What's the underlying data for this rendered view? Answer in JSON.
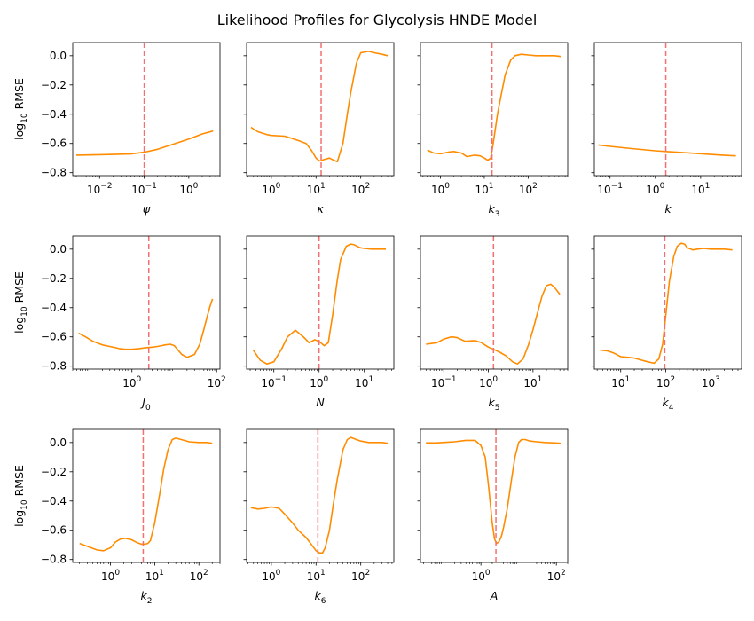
{
  "figure": {
    "title": "Likelihood Profiles for Glycolysis HNDE Model"
  },
  "chart_data": [
    {
      "type": "line",
      "xlabel": "ψ",
      "xsub": "",
      "ylabel": "log10 RMSE",
      "xscale": "log",
      "xlim": [
        0.0025,
        5.0
      ],
      "ylim": [
        -0.82,
        0.09
      ],
      "xticks": [
        0.01,
        0.1,
        1
      ],
      "xtick_labels": [
        "10−2",
        "10−1",
        "100"
      ],
      "yticks": [
        0.0,
        -0.2,
        -0.4,
        -0.6,
        -0.8
      ],
      "ytick_labels": [
        "0.0",
        "−0.2",
        "−0.4",
        "−0.6",
        "−0.8"
      ],
      "reference_x": 0.1,
      "series": [
        {
          "x": [
            0.003,
            0.01,
            0.05,
            0.1,
            0.2,
            0.5,
            1.0,
            2.0,
            3.5
          ],
          "y": [
            -0.68,
            -0.677,
            -0.672,
            -0.66,
            -0.64,
            -0.6,
            -0.57,
            -0.535,
            -0.515
          ]
        }
      ]
    },
    {
      "type": "line",
      "xlabel": "κ",
      "xsub": "",
      "ylabel": "",
      "xscale": "log",
      "xlim": [
        0.28,
        550
      ],
      "ylim": [
        -0.82,
        0.09
      ],
      "xticks": [
        1,
        10,
        100
      ],
      "xtick_labels": [
        "100",
        "101",
        "102"
      ],
      "yticks": [
        0.0,
        -0.2,
        -0.4,
        -0.6,
        -0.8
      ],
      "ytick_labels": [],
      "reference_x": 13,
      "series": [
        {
          "x": [
            0.35,
            0.5,
            0.8,
            1.0,
            2.0,
            4.0,
            6.0,
            8.0,
            10.0,
            12.0,
            15.0,
            20.0,
            25.0,
            30.0,
            40.0,
            50.0,
            60.0,
            80.0,
            100.0,
            150.0,
            200.0,
            300.0,
            400.0
          ],
          "y": [
            -0.49,
            -0.52,
            -0.54,
            -0.545,
            -0.55,
            -0.58,
            -0.6,
            -0.65,
            -0.7,
            -0.72,
            -0.71,
            -0.7,
            -0.715,
            -0.725,
            -0.6,
            -0.4,
            -0.25,
            -0.05,
            0.02,
            0.03,
            0.02,
            0.01,
            0.0
          ]
        }
      ]
    },
    {
      "type": "line",
      "xlabel": "k",
      "xsub": "3",
      "ylabel": "",
      "xscale": "log",
      "xlim": [
        0.35,
        800
      ],
      "ylim": [
        -0.82,
        0.09
      ],
      "xticks": [
        1,
        10,
        100
      ],
      "xtick_labels": [
        "100",
        "101",
        "102"
      ],
      "yticks": [
        0.0,
        -0.2,
        -0.4,
        -0.6,
        -0.8
      ],
      "ytick_labels": [],
      "reference_x": 15,
      "series": [
        {
          "x": [
            0.5,
            0.7,
            1.0,
            1.5,
            2.0,
            3.0,
            4.0,
            6.0,
            8.0,
            10.0,
            12.0,
            14.0,
            16.0,
            20.0,
            25.0,
            30.0,
            40.0,
            50.0,
            70.0,
            100.0,
            150.0,
            200.0,
            300.0,
            400.0,
            550.0
          ],
          "y": [
            -0.645,
            -0.665,
            -0.67,
            -0.66,
            -0.655,
            -0.665,
            -0.69,
            -0.68,
            -0.685,
            -0.7,
            -0.715,
            -0.7,
            -0.6,
            -0.4,
            -0.25,
            -0.13,
            -0.03,
            0.0,
            0.01,
            0.005,
            0.0,
            0.0,
            0.0,
            0.0,
            -0.005
          ]
        }
      ]
    },
    {
      "type": "line",
      "xlabel": "k",
      "xsub": "",
      "ylabel": "",
      "xscale": "log",
      "xlim": [
        0.045,
        80
      ],
      "ylim": [
        -0.82,
        0.09
      ],
      "xticks": [
        0.1,
        1,
        10
      ],
      "xtick_labels": [
        "10−1",
        "100",
        "101"
      ],
      "yticks": [
        0.0,
        -0.2,
        -0.4,
        -0.6,
        -0.8
      ],
      "ytick_labels": [],
      "reference_x": 1.7,
      "series": [
        {
          "x": [
            0.055,
            0.1,
            0.3,
            1.0,
            1.7,
            3.0,
            10.0,
            30.0,
            60.0
          ],
          "y": [
            -0.61,
            -0.62,
            -0.635,
            -0.65,
            -0.655,
            -0.66,
            -0.67,
            -0.68,
            -0.685
          ]
        }
      ]
    },
    {
      "type": "line",
      "xlabel": "J",
      "xsub": "0",
      "ylabel": "log10 RMSE",
      "xscale": "log",
      "xlim": [
        0.04,
        120
      ],
      "ylim": [
        -0.82,
        0.09
      ],
      "xticks": [
        1,
        100
      ],
      "xtick_labels": [
        "100",
        "102"
      ],
      "yticks": [
        0.0,
        -0.2,
        -0.4,
        -0.6,
        -0.8
      ],
      "ytick_labels": [
        "0.0",
        "−0.2",
        "−0.4",
        "−0.6",
        "−0.8"
      ],
      "reference_x": 2.5,
      "series": [
        {
          "x": [
            0.055,
            0.08,
            0.12,
            0.2,
            0.3,
            0.5,
            0.7,
            1.0,
            1.5,
            2.0,
            3.0,
            4.0,
            5.0,
            6.0,
            8.0,
            10.0,
            15.0,
            20.0,
            30.0,
            40.0,
            50.0,
            60.0,
            70.0,
            80.0
          ],
          "y": [
            -0.575,
            -0.6,
            -0.63,
            -0.655,
            -0.665,
            -0.68,
            -0.685,
            -0.685,
            -0.68,
            -0.675,
            -0.67,
            -0.665,
            -0.66,
            -0.655,
            -0.65,
            -0.66,
            -0.72,
            -0.74,
            -0.72,
            -0.65,
            -0.55,
            -0.46,
            -0.39,
            -0.34
          ]
        }
      ]
    },
    {
      "type": "line",
      "xlabel": "N",
      "xsub": "",
      "ylabel": "",
      "xscale": "log",
      "xlim": [
        0.025,
        45
      ],
      "ylim": [
        -0.82,
        0.09
      ],
      "xticks": [
        0.1,
        1,
        10
      ],
      "xtick_labels": [
        "10−1",
        "100",
        "101"
      ],
      "yticks": [
        0.0,
        -0.2,
        -0.4,
        -0.6,
        -0.8
      ],
      "ytick_labels": [],
      "reference_x": 1.0,
      "series": [
        {
          "x": [
            0.035,
            0.05,
            0.07,
            0.1,
            0.15,
            0.2,
            0.3,
            0.45,
            0.6,
            0.8,
            1.0,
            1.3,
            1.6,
            2.0,
            2.5,
            3.0,
            4.0,
            5.0,
            6.0,
            8.0,
            10.0,
            15.0,
            20.0,
            30.0
          ],
          "y": [
            -0.69,
            -0.76,
            -0.785,
            -0.77,
            -0.68,
            -0.6,
            -0.555,
            -0.6,
            -0.64,
            -0.62,
            -0.63,
            -0.66,
            -0.64,
            -0.45,
            -0.22,
            -0.07,
            0.02,
            0.035,
            0.03,
            0.01,
            0.005,
            0.0,
            0.0,
            0.0
          ]
        }
      ]
    },
    {
      "type": "line",
      "xlabel": "k",
      "xsub": "5",
      "ylabel": "",
      "xscale": "log",
      "xlim": [
        0.03,
        60
      ],
      "ylim": [
        -0.82,
        0.09
      ],
      "xticks": [
        0.1,
        1,
        10
      ],
      "xtick_labels": [
        "10−1",
        "100",
        "101"
      ],
      "yticks": [
        0.0,
        -0.2,
        -0.4,
        -0.6,
        -0.8
      ],
      "ytick_labels": [],
      "reference_x": 1.3,
      "series": [
        {
          "x": [
            0.04,
            0.07,
            0.1,
            0.15,
            0.2,
            0.3,
            0.5,
            0.7,
            1.0,
            1.3,
            1.8,
            2.5,
            3.5,
            4.5,
            6.0,
            8.0,
            10.0,
            13.0,
            16.0,
            20.0,
            25.0,
            30.0,
            40.0
          ],
          "y": [
            -0.65,
            -0.64,
            -0.615,
            -0.6,
            -0.605,
            -0.63,
            -0.625,
            -0.64,
            -0.67,
            -0.685,
            -0.705,
            -0.73,
            -0.77,
            -0.785,
            -0.75,
            -0.65,
            -0.55,
            -0.42,
            -0.32,
            -0.25,
            -0.24,
            -0.26,
            -0.31
          ]
        }
      ]
    },
    {
      "type": "line",
      "xlabel": "k",
      "xsub": "4",
      "ylabel": "",
      "xscale": "log",
      "xlim": [
        2.6,
        4800
      ],
      "ylim": [
        -0.82,
        0.09
      ],
      "xticks": [
        10,
        100,
        1000
      ],
      "xtick_labels": [
        "101",
        "102",
        "103"
      ],
      "yticks": [
        0.0,
        -0.2,
        -0.4,
        -0.6,
        -0.8
      ],
      "ytick_labels": [],
      "reference_x": 95,
      "series": [
        {
          "x": [
            3.5,
            5.0,
            7.0,
            10.0,
            15.0,
            20.0,
            30.0,
            40.0,
            55.0,
            70.0,
            85.0,
            100.0,
            120.0,
            150.0,
            180.0,
            220.0,
            260.0,
            300.0,
            400.0,
            500.0,
            700.0,
            1000.0,
            1500.0,
            2000.0,
            3000.0
          ],
          "y": [
            -0.69,
            -0.695,
            -0.71,
            -0.735,
            -0.74,
            -0.745,
            -0.76,
            -0.77,
            -0.78,
            -0.75,
            -0.65,
            -0.45,
            -0.22,
            -0.05,
            0.02,
            0.04,
            0.035,
            0.01,
            -0.005,
            0.0,
            0.005,
            0.0,
            0.0,
            0.0,
            -0.005
          ]
        }
      ]
    },
    {
      "type": "line",
      "xlabel": "k",
      "xsub": "2",
      "ylabel": "log10 RMSE",
      "xscale": "log",
      "xlim": [
        0.14,
        300
      ],
      "ylim": [
        -0.82,
        0.09
      ],
      "xticks": [
        1,
        10,
        100
      ],
      "xtick_labels": [
        "100",
        "101",
        "102"
      ],
      "yticks": [
        0.0,
        -0.2,
        -0.4,
        -0.6,
        -0.8
      ],
      "ytick_labels": [
        "0.0",
        "−0.2",
        "−0.4",
        "−0.6",
        "−0.8"
      ],
      "reference_x": 5.5,
      "series": [
        {
          "x": [
            0.2,
            0.3,
            0.5,
            0.7,
            1.0,
            1.3,
            1.7,
            2.2,
            3.0,
            4.0,
            5.0,
            6.0,
            7.0,
            8.0,
            10.0,
            13.0,
            16.0,
            20.0,
            25.0,
            30.0,
            40.0,
            60.0,
            100.0,
            150.0,
            200.0
          ],
          "y": [
            -0.69,
            -0.71,
            -0.735,
            -0.74,
            -0.72,
            -0.68,
            -0.66,
            -0.655,
            -0.665,
            -0.685,
            -0.695,
            -0.695,
            -0.69,
            -0.67,
            -0.55,
            -0.35,
            -0.18,
            -0.05,
            0.02,
            0.03,
            0.02,
            0.005,
            0.0,
            0.0,
            -0.005
          ]
        }
      ]
    },
    {
      "type": "line",
      "xlabel": "k",
      "xsub": "6",
      "ylabel": "",
      "xscale": "log",
      "xlim": [
        0.28,
        550
      ],
      "ylim": [
        -0.82,
        0.09
      ],
      "xticks": [
        1,
        10,
        100
      ],
      "xtick_labels": [
        "100",
        "101",
        "102"
      ],
      "yticks": [
        0.0,
        -0.2,
        -0.4,
        -0.6,
        -0.8
      ],
      "ytick_labels": [],
      "reference_x": 11,
      "series": [
        {
          "x": [
            0.35,
            0.5,
            0.7,
            1.0,
            1.5,
            2.0,
            3.0,
            4.0,
            6.0,
            8.0,
            10.0,
            12.0,
            14.0,
            16.0,
            20.0,
            25.0,
            30.0,
            40.0,
            50.0,
            60.0,
            80.0,
            100.0,
            150.0,
            200.0,
            300.0,
            400.0
          ],
          "y": [
            -0.445,
            -0.455,
            -0.45,
            -0.44,
            -0.45,
            -0.49,
            -0.55,
            -0.6,
            -0.65,
            -0.7,
            -0.74,
            -0.755,
            -0.755,
            -0.72,
            -0.6,
            -0.4,
            -0.25,
            -0.05,
            0.02,
            0.035,
            0.02,
            0.01,
            0.0,
            0.0,
            0.0,
            -0.005
          ]
        }
      ]
    },
    {
      "type": "line",
      "xlabel": "A",
      "xsub": "",
      "ylabel": "",
      "xscale": "log",
      "xlim": [
        0.025,
        200
      ],
      "ylim": [
        -0.82,
        0.09
      ],
      "xticks": [
        1,
        100
      ],
      "xtick_labels": [
        "100",
        "102"
      ],
      "yticks": [
        0.0,
        -0.2,
        -0.4,
        -0.6,
        -0.8
      ],
      "ytick_labels": [],
      "reference_x": 2.5,
      "series": [
        {
          "x": [
            0.035,
            0.06,
            0.1,
            0.2,
            0.4,
            0.7,
            1.0,
            1.3,
            1.6,
            2.0,
            2.3,
            2.6,
            3.0,
            3.5,
            4.0,
            5.0,
            6.5,
            8.0,
            10.0,
            12.0,
            15.0,
            20.0,
            30.0,
            50.0,
            80.0,
            130.0
          ],
          "y": [
            -0.002,
            -0.003,
            0.0,
            0.005,
            0.015,
            0.015,
            -0.02,
            -0.1,
            -0.3,
            -0.55,
            -0.66,
            -0.69,
            -0.68,
            -0.64,
            -0.58,
            -0.45,
            -0.25,
            -0.1,
            0.0,
            0.02,
            0.02,
            0.01,
            0.005,
            0.0,
            -0.002,
            -0.005
          ]
        }
      ]
    }
  ]
}
